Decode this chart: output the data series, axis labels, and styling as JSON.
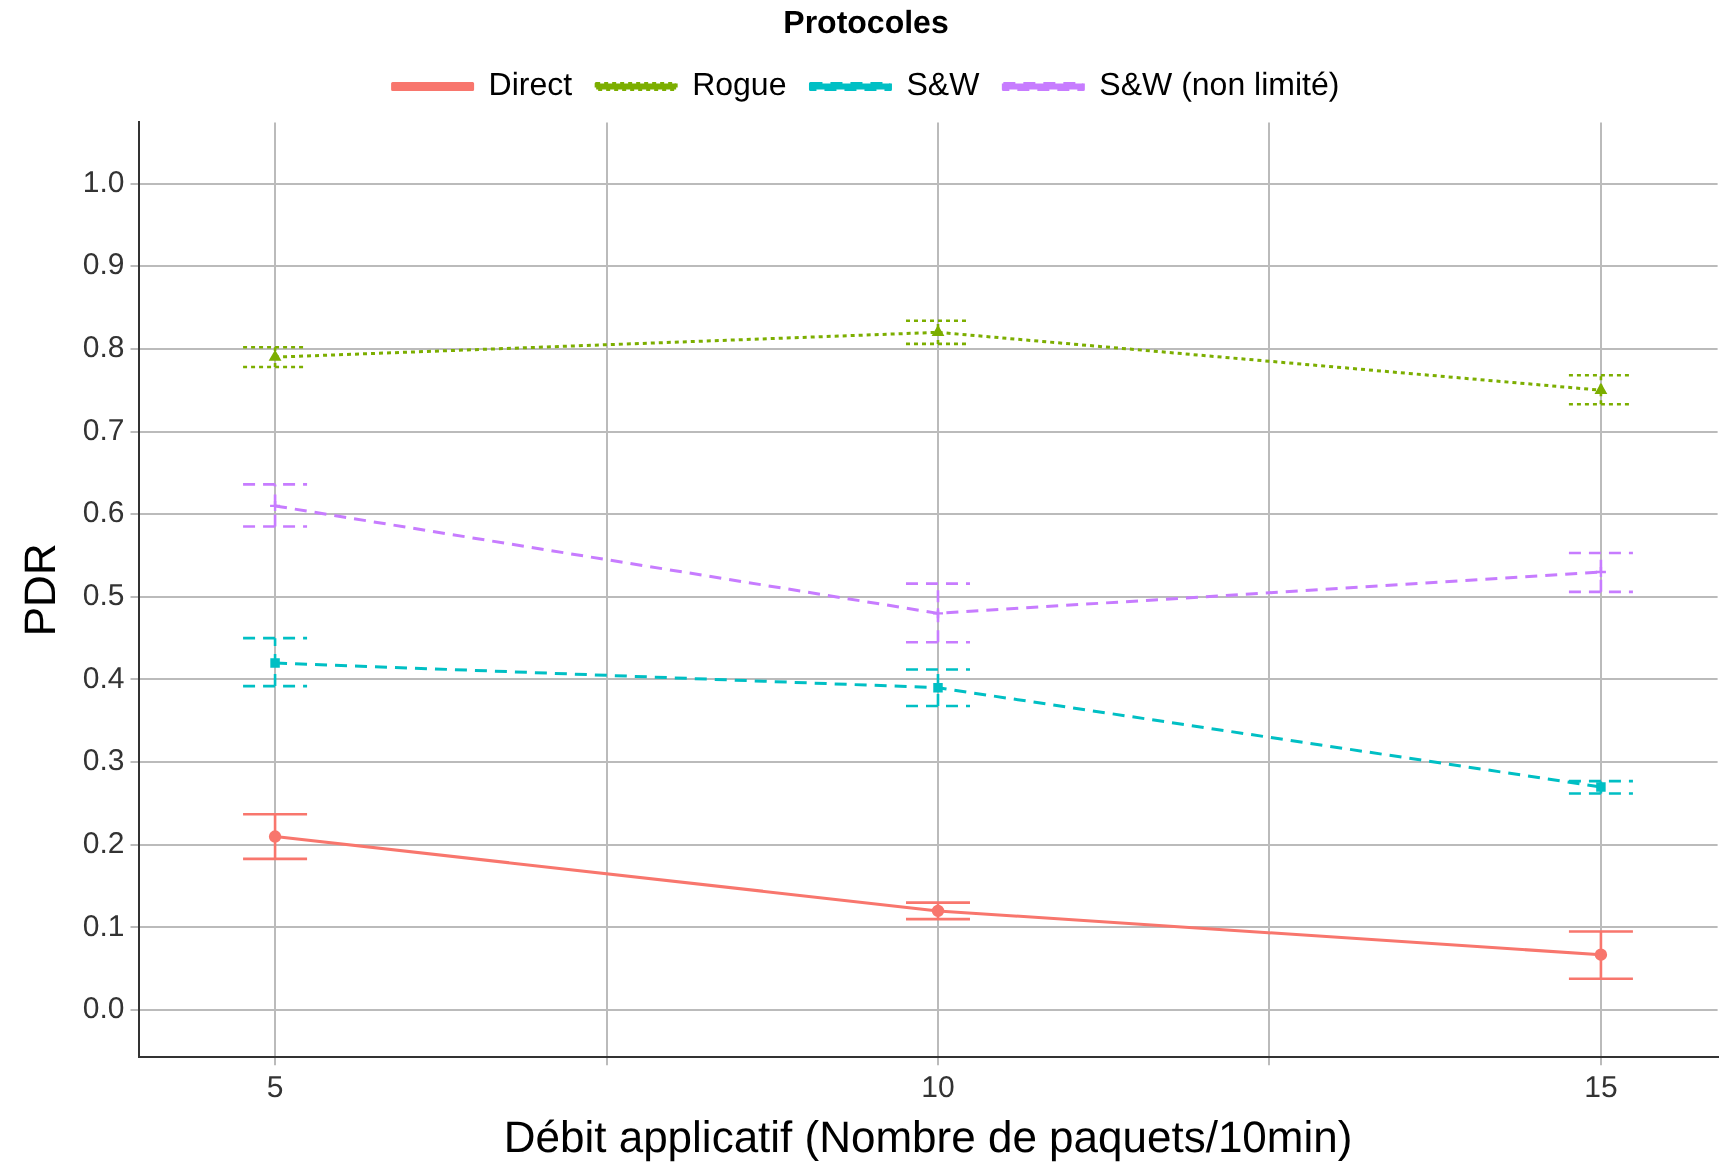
{
  "chart_data": {
    "type": "line",
    "xlabel": "Débit applicatif (Nombre de paquets/10min)",
    "ylabel": "PDR",
    "legend_title": "Protocoles",
    "legend": "top",
    "grid": true,
    "x": [
      5,
      10,
      15
    ],
    "xlim": [
      3.97,
      15.88
    ],
    "xticks": [
      5,
      {
        "value": 7.5,
        "label": null
      },
      10,
      {
        "value": 12.5,
        "label": null
      },
      15
    ],
    "ylim": [
      -0.057,
      1.074
    ],
    "yticks": [
      {
        "value": 0,
        "label": "0.0"
      },
      0.1,
      0.2,
      0.3,
      0.4,
      0.5,
      0.6,
      0.7,
      0.8,
      0.9,
      {
        "value": 1,
        "label": "1.0"
      }
    ],
    "series": [
      {
        "name": "Direct",
        "color": "#f8766d",
        "marker": "circle",
        "line_style": "solid",
        "values": [
          0.21,
          0.12,
          0.067
        ],
        "errors": [
          [
            0.183,
            0.237
          ],
          [
            0.11,
            0.13
          ],
          [
            0.038,
            0.095
          ]
        ]
      },
      {
        "name": "Rogue",
        "color": "#7cae00",
        "marker": "triangle",
        "line_style": "dotted",
        "values": [
          0.79,
          0.82,
          0.75
        ],
        "errors": [
          [
            0.778,
            0.802
          ],
          [
            0.806,
            0.834
          ],
          [
            0.733,
            0.768
          ]
        ]
      },
      {
        "name": "S&W",
        "color": "#00bfc4",
        "marker": "square",
        "line_style": "dashed",
        "values": [
          0.42,
          0.39,
          0.27
        ],
        "errors": [
          [
            0.392,
            0.45
          ],
          [
            0.368,
            0.412
          ],
          [
            0.262,
            0.277
          ]
        ]
      },
      {
        "name": "S&W (non limité)",
        "color": "#c77cff",
        "marker": "cross",
        "line_style": "dashed",
        "values": [
          0.61,
          0.48,
          0.53
        ],
        "errors": [
          [
            0.585,
            0.636
          ],
          [
            0.445,
            0.516
          ],
          [
            0.506,
            0.553
          ]
        ]
      }
    ]
  }
}
